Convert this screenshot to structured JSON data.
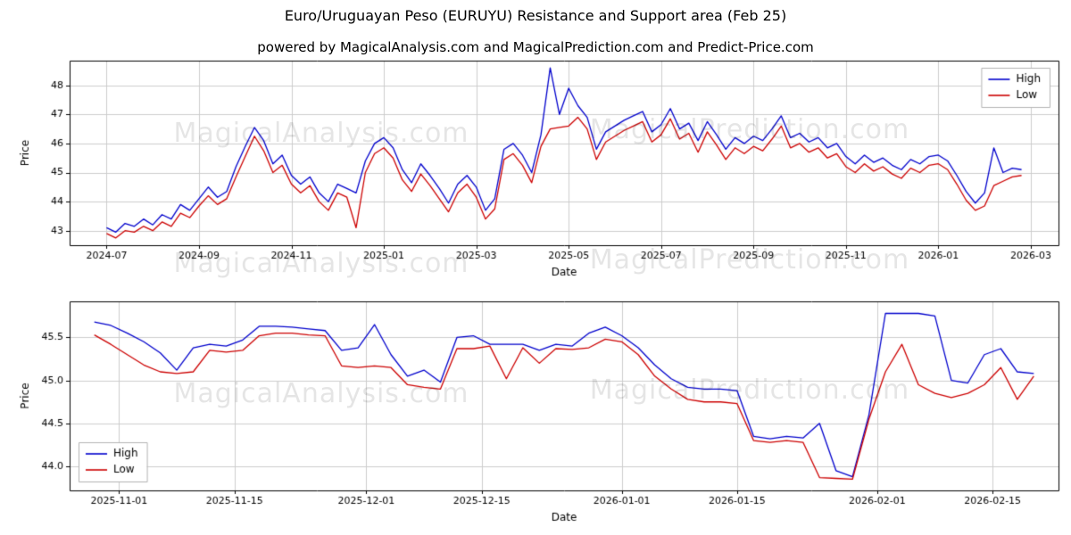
{
  "header": {
    "title": "Euro/Uruguayan Peso (EURUYU) Resistance and Support area (Feb 25)",
    "subtitle": "powered by MagicalAnalysis.com and MagicalPrediction.com and Predict-Price.com"
  },
  "watermarks": [
    "MagicalAnalysis.com",
    "MagicalPrediction.com"
  ],
  "style": {
    "high_color": "#0000cc",
    "low_color": "#cc0000",
    "grid_color": "#cccccc",
    "axis_color": "#000000",
    "legend_border": "#b3b3b3"
  },
  "chart_data": [
    {
      "type": "line",
      "title": "",
      "xlabel": "Date",
      "ylabel": "Price",
      "grid": true,
      "legend": [
        "High",
        "Low"
      ],
      "legend_position": "upper-right",
      "xlim": [
        -0.8,
        20.6
      ],
      "ylim": [
        42.5,
        48.85
      ],
      "x_ticks": {
        "values": [
          0,
          2,
          4,
          6,
          8,
          10,
          12,
          14,
          16,
          18,
          20
        ],
        "labels": [
          "2024-07",
          "2024-09",
          "2024-11",
          "2025-01",
          "2025-03",
          "2025-05",
          "2025-07",
          "2025-09",
          "2025-11",
          "2026-01",
          "2026-03"
        ]
      },
      "y_ticks": {
        "values": [
          43,
          44,
          45,
          46,
          47,
          48
        ],
        "labels": [
          "43",
          "44",
          "45",
          "46",
          "47",
          "48"
        ]
      },
      "x": [
        0,
        0.2,
        0.4,
        0.6,
        0.8,
        1,
        1.2,
        1.4,
        1.6,
        1.8,
        2,
        2.2,
        2.4,
        2.6,
        2.8,
        3,
        3.2,
        3.4,
        3.6,
        3.8,
        4,
        4.2,
        4.4,
        4.6,
        4.8,
        5,
        5.2,
        5.4,
        5.6,
        5.8,
        6,
        6.2,
        6.4,
        6.6,
        6.8,
        7,
        7.2,
        7.4,
        7.6,
        7.8,
        8,
        8.2,
        8.4,
        8.6,
        8.8,
        9,
        9.2,
        9.4,
        9.6,
        9.8,
        10,
        10.2,
        10.4,
        10.6,
        10.8,
        11,
        11.2,
        11.4,
        11.6,
        11.8,
        12,
        12.2,
        12.4,
        12.6,
        12.8,
        13,
        13.2,
        13.4,
        13.6,
        13.8,
        14,
        14.2,
        14.4,
        14.6,
        14.8,
        15,
        15.2,
        15.4,
        15.6,
        15.8,
        16,
        16.2,
        16.4,
        16.6,
        16.8,
        17,
        17.2,
        17.4,
        17.6,
        17.8,
        18,
        18.2,
        18.4,
        18.6,
        18.8,
        19,
        19.2,
        19.4,
        19.6,
        19.8
      ],
      "series": [
        {
          "name": "High",
          "color": "#0000cc",
          "values": [
            43.1,
            42.95,
            43.25,
            43.15,
            43.4,
            43.2,
            43.55,
            43.4,
            43.9,
            43.7,
            44.1,
            44.5,
            44.15,
            44.35,
            45.2,
            45.9,
            46.55,
            46.1,
            45.3,
            45.6,
            44.9,
            44.6,
            44.85,
            44.3,
            44.0,
            44.6,
            44.45,
            44.3,
            45.4,
            46.0,
            46.2,
            45.85,
            45.1,
            44.65,
            45.3,
            44.9,
            44.45,
            43.95,
            44.6,
            44.9,
            44.5,
            43.7,
            44.1,
            45.8,
            46.0,
            45.6,
            45.0,
            46.3,
            48.6,
            47.0,
            47.9,
            47.3,
            46.9,
            45.8,
            46.4,
            46.6,
            46.8,
            46.95,
            47.1,
            46.4,
            46.65,
            47.2,
            46.5,
            46.7,
            46.1,
            46.75,
            46.3,
            45.8,
            46.2,
            46.0,
            46.25,
            46.1,
            46.5,
            46.95,
            46.2,
            46.35,
            46.05,
            46.2,
            45.85,
            46.0,
            45.55,
            45.3,
            45.6,
            45.35,
            45.5,
            45.25,
            45.1,
            45.45,
            45.3,
            45.55,
            45.6,
            45.4,
            44.9,
            44.35,
            43.95,
            44.3,
            45.85,
            45.0,
            45.15,
            45.1
          ]
        },
        {
          "name": "Low",
          "color": "#cc0000",
          "values": [
            42.9,
            42.75,
            43.0,
            42.95,
            43.15,
            43.0,
            43.3,
            43.15,
            43.6,
            43.45,
            43.85,
            44.2,
            43.9,
            44.1,
            44.85,
            45.55,
            46.25,
            45.75,
            45.0,
            45.25,
            44.6,
            44.3,
            44.55,
            44.0,
            43.7,
            44.3,
            44.15,
            43.1,
            45.0,
            45.65,
            45.85,
            45.5,
            44.75,
            44.35,
            44.95,
            44.55,
            44.1,
            43.65,
            44.3,
            44.6,
            44.15,
            43.4,
            43.75,
            45.45,
            45.65,
            45.25,
            44.65,
            45.9,
            46.5,
            46.55,
            46.6,
            46.9,
            46.5,
            45.45,
            46.05,
            46.25,
            46.45,
            46.6,
            46.75,
            46.05,
            46.3,
            46.85,
            46.15,
            46.35,
            45.7,
            46.4,
            45.95,
            45.45,
            45.85,
            45.65,
            45.9,
            45.75,
            46.15,
            46.6,
            45.85,
            46.0,
            45.7,
            45.85,
            45.5,
            45.65,
            45.2,
            45.0,
            45.3,
            45.05,
            45.2,
            44.95,
            44.8,
            45.15,
            45.0,
            45.25,
            45.3,
            45.1,
            44.6,
            44.05,
            43.7,
            43.85,
            44.55,
            44.7,
            44.85,
            44.9
          ]
        }
      ]
    },
    {
      "type": "line",
      "title": "",
      "xlabel": "Date",
      "ylabel": "Price",
      "grid": true,
      "legend": [
        "High",
        "Low"
      ],
      "legend_position": "lower-left",
      "xlim": [
        -6,
        114
      ],
      "ylim": [
        43.72,
        45.92
      ],
      "x_ticks": {
        "values": [
          0,
          14,
          30,
          44,
          61,
          75,
          92,
          106
        ],
        "labels": [
          "2025-11-01",
          "2025-11-15",
          "2025-12-01",
          "2025-12-15",
          "2026-01-01",
          "2026-01-15",
          "2026-02-01",
          "2026-02-15"
        ]
      },
      "y_ticks": {
        "values": [
          44.0,
          44.5,
          45.0,
          45.5
        ],
        "labels": [
          "44.0",
          "44.5",
          "45.0",
          "45.5"
        ]
      },
      "x": [
        -3,
        -1,
        1,
        3,
        5,
        7,
        9,
        11,
        13,
        15,
        17,
        19,
        21,
        23,
        25,
        27,
        29,
        31,
        33,
        35,
        37,
        39,
        41,
        43,
        45,
        47,
        49,
        51,
        53,
        55,
        57,
        59,
        61,
        63,
        65,
        67,
        69,
        71,
        73,
        75,
        77,
        79,
        81,
        83,
        85,
        87,
        89,
        91,
        93,
        95,
        97,
        99,
        101,
        103,
        105,
        107,
        109,
        111
      ],
      "series": [
        {
          "name": "High",
          "color": "#0000cc",
          "values": [
            45.68,
            45.64,
            45.55,
            45.45,
            45.32,
            45.12,
            45.38,
            45.42,
            45.4,
            45.47,
            45.63,
            45.63,
            45.62,
            45.6,
            45.58,
            45.35,
            45.38,
            45.65,
            45.3,
            45.05,
            45.12,
            44.98,
            45.5,
            45.52,
            45.42,
            45.42,
            45.42,
            45.35,
            45.42,
            45.4,
            45.55,
            45.62,
            45.52,
            45.38,
            45.18,
            45.02,
            44.92,
            44.9,
            44.9,
            44.88,
            44.35,
            44.32,
            44.35,
            44.33,
            44.5,
            43.95,
            43.88,
            44.6,
            45.78,
            45.78,
            45.78,
            45.75,
            45.0,
            44.97,
            45.3,
            45.37,
            45.1,
            45.08
          ]
        },
        {
          "name": "Low",
          "color": "#cc0000",
          "values": [
            45.53,
            45.42,
            45.3,
            45.18,
            45.1,
            45.08,
            45.1,
            45.35,
            45.33,
            45.35,
            45.52,
            45.55,
            45.55,
            45.53,
            45.52,
            45.17,
            45.15,
            45.17,
            45.15,
            44.95,
            44.92,
            44.9,
            45.37,
            45.37,
            45.4,
            45.02,
            45.38,
            45.2,
            45.37,
            45.36,
            45.38,
            45.48,
            45.45,
            45.3,
            45.05,
            44.9,
            44.78,
            44.75,
            44.75,
            44.73,
            44.3,
            44.28,
            44.3,
            44.28,
            43.87,
            43.86,
            43.85,
            44.55,
            45.1,
            45.42,
            44.95,
            44.85,
            44.8,
            44.85,
            44.95,
            45.15,
            44.78,
            45.05
          ]
        }
      ]
    }
  ]
}
